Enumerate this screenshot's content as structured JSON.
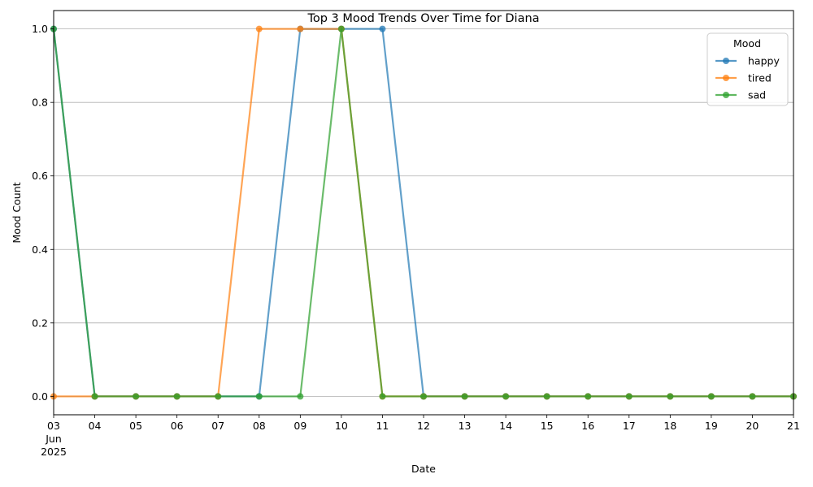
{
  "chart_data": {
    "type": "line",
    "title": "Top 3 Mood Trends Over Time for Diana",
    "xlabel": "Date",
    "ylabel": "Mood Count",
    "x_month_label": "Jun",
    "x_year_label": "2025",
    "x": [
      "03",
      "04",
      "05",
      "06",
      "07",
      "08",
      "09",
      "10",
      "11",
      "12",
      "13",
      "14",
      "15",
      "16",
      "17",
      "18",
      "19",
      "20",
      "21"
    ],
    "ylim": [
      -0.05,
      1.05
    ],
    "yticks": [
      "0.0",
      "0.2",
      "0.4",
      "0.6",
      "0.8",
      "1.0"
    ],
    "grid": "horizontal",
    "legend": {
      "title": "Mood",
      "placement": "top-right"
    },
    "series": [
      {
        "name": "happy",
        "color": "#1f77b4",
        "values": [
          1,
          0,
          0,
          0,
          0,
          0,
          1,
          1,
          1,
          0,
          0,
          0,
          0,
          0,
          0,
          0,
          0,
          0,
          0
        ]
      },
      {
        "name": "tired",
        "color": "#ff7f0e",
        "values": [
          0,
          0,
          0,
          0,
          0,
          1,
          1,
          1,
          0,
          0,
          0,
          0,
          0,
          0,
          0,
          0,
          0,
          0,
          0
        ]
      },
      {
        "name": "sad",
        "color": "#2ca02c",
        "values": [
          1,
          0,
          0,
          0,
          0,
          0,
          0,
          1,
          0,
          0,
          0,
          0,
          0,
          0,
          0,
          0,
          0,
          0,
          0
        ]
      }
    ]
  }
}
